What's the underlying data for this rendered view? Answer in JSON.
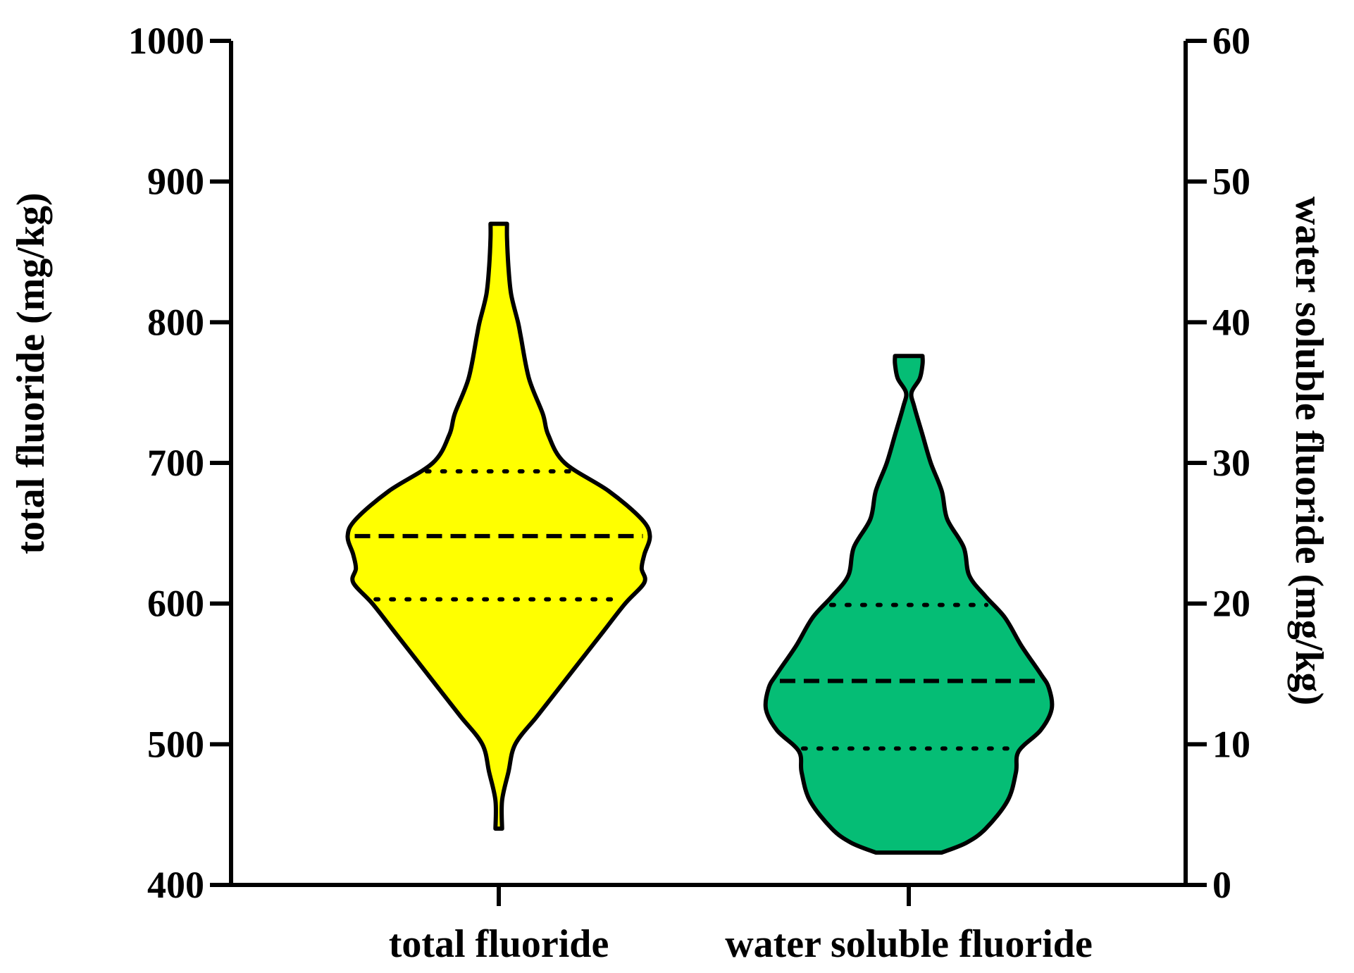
{
  "chart_data": {
    "type": "violin",
    "categories": [
      "total fluoride",
      "water soluble fluoride"
    ],
    "left_axis": {
      "label": "total fluoride  (mg/kg)",
      "range": [
        400,
        1000
      ],
      "ticks": [
        400,
        500,
        600,
        700,
        800,
        900,
        1000
      ]
    },
    "right_axis": {
      "label": "water soluble fluoride  (mg/kg)",
      "range": [
        0,
        60
      ],
      "ticks": [
        0,
        10,
        20,
        30,
        40,
        50,
        60
      ]
    },
    "series": [
      {
        "category": "total fluoride",
        "axis": "left",
        "color": "#FFFF00",
        "min": 440,
        "max": 870,
        "q1": 603,
        "median": 648,
        "q3": 694,
        "density": [
          [
            440,
            0.012
          ],
          [
            460,
            0.012
          ],
          [
            480,
            0.035
          ],
          [
            500,
            0.06
          ],
          [
            520,
            0.14
          ],
          [
            540,
            0.22
          ],
          [
            560,
            0.3
          ],
          [
            580,
            0.38
          ],
          [
            600,
            0.46
          ],
          [
            615,
            0.53
          ],
          [
            625,
            0.52
          ],
          [
            635,
            0.53
          ],
          [
            648,
            0.55
          ],
          [
            660,
            0.52
          ],
          [
            680,
            0.4
          ],
          [
            700,
            0.24
          ],
          [
            720,
            0.18
          ],
          [
            735,
            0.16
          ],
          [
            760,
            0.11
          ],
          [
            790,
            0.08
          ],
          [
            800,
            0.07
          ],
          [
            820,
            0.045
          ],
          [
            840,
            0.035
          ],
          [
            860,
            0.03
          ],
          [
            870,
            0.03
          ]
        ]
      },
      {
        "category": "water soluble fluoride",
        "axis": "right",
        "color": "#05BD75",
        "min": 2.3,
        "max": 37.6,
        "q1": 9.7,
        "median": 14.5,
        "q3": 19.9,
        "density": [
          [
            2.3,
            0.12
          ],
          [
            3,
            0.21
          ],
          [
            4,
            0.28
          ],
          [
            6,
            0.36
          ],
          [
            8,
            0.39
          ],
          [
            9.5,
            0.4
          ],
          [
            11,
            0.48
          ],
          [
            12.5,
            0.52
          ],
          [
            14,
            0.51
          ],
          [
            15,
            0.48
          ],
          [
            17,
            0.41
          ],
          [
            19,
            0.35
          ],
          [
            20.5,
            0.28
          ],
          [
            22,
            0.22
          ],
          [
            24,
            0.2
          ],
          [
            26,
            0.14
          ],
          [
            28,
            0.12
          ],
          [
            30,
            0.08
          ],
          [
            32,
            0.05
          ],
          [
            34,
            0.02
          ],
          [
            35,
            0.01
          ],
          [
            36,
            0.04
          ],
          [
            37,
            0.05
          ],
          [
            37.6,
            0.05
          ]
        ]
      }
    ]
  }
}
